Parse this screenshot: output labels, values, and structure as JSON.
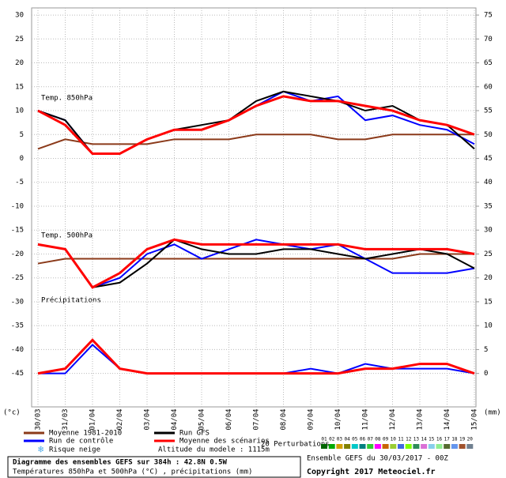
{
  "chart_data": {
    "type": "line",
    "x": [
      "30/03",
      "31/03",
      "01/04",
      "02/04",
      "03/04",
      "04/04",
      "05/04",
      "06/04",
      "07/04",
      "08/04",
      "09/04",
      "10/04",
      "11/04",
      "12/04",
      "13/04",
      "14/04",
      "15/04"
    ],
    "ylim": [
      -52,
      31.5
    ],
    "yticks": [
      30,
      25,
      20,
      15,
      10,
      5,
      0,
      -5,
      -10,
      -15,
      -20,
      -25,
      -30,
      -35,
      -40,
      -45
    ],
    "y2lim": [
      -7,
      76.5
    ],
    "y2ticks": [
      75,
      70,
      65,
      60,
      55,
      50,
      45,
      40,
      35,
      30,
      25,
      20,
      15,
      10,
      5,
      0
    ],
    "grid": true,
    "y_unit": "(°c)",
    "y2_unit": "(mm)",
    "annotations": [
      "Temp. 850hPa",
      "Temp. 500hPa",
      "Précipitations"
    ],
    "series": [
      {
        "name": "Moyenne 1981-2010",
        "color": "#8b3a1a",
        "values": [
          2,
          4,
          3,
          3,
          3,
          4,
          4,
          4,
          5,
          5,
          5,
          4,
          4,
          5,
          5,
          5,
          5
        ]
      },
      {
        "name": "Moyenne 1981-2010",
        "color": "#8b3a1a",
        "values": [
          -22,
          -21,
          -21,
          -21,
          -21,
          -21,
          -21,
          -21,
          -21,
          -21,
          -21,
          -21,
          -21,
          -21,
          -20,
          -20,
          -20
        ]
      },
      {
        "name": "Run de contrôle",
        "color": "#0000ff",
        "values": [
          10,
          8,
          1,
          1,
          4,
          6,
          6,
          8,
          11,
          14,
          12,
          13,
          8,
          9,
          7,
          6,
          3
        ]
      },
      {
        "name": "Run GFS",
        "color": "#000000",
        "values": [
          10,
          8,
          1,
          1,
          4,
          6,
          7,
          8,
          12,
          14,
          13,
          12,
          10,
          11,
          8,
          7,
          2
        ]
      },
      {
        "name": "Moyenne des scénarios",
        "color": "#ff0000",
        "values": [
          10,
          7,
          1,
          1,
          4,
          6,
          6,
          8,
          11,
          13,
          12,
          12,
          11,
          10,
          8,
          7,
          5
        ]
      },
      {
        "name": "Run de contrôle",
        "color": "#0000ff",
        "values": [
          -18,
          -19,
          -27,
          -25,
          -20,
          -18,
          -21,
          -19,
          -17,
          -18,
          -19,
          -18,
          -21,
          -24,
          -24,
          -24,
          -23
        ]
      },
      {
        "name": "Run GFS",
        "color": "#000000",
        "values": [
          -18,
          -19,
          -27,
          -26,
          -22,
          -17,
          -19,
          -20,
          -20,
          -19,
          -19,
          -20,
          -21,
          -20,
          -19,
          -20,
          -23
        ]
      },
      {
        "name": "Moyenne des scénarios",
        "color": "#ff0000",
        "values": [
          -18,
          -19,
          -27,
          -24,
          -19,
          -17,
          -18,
          -18,
          -18,
          -18,
          -18,
          -18,
          -19,
          -19,
          -19,
          -19,
          -20
        ]
      },
      {
        "name": "Run de contrôle",
        "color": "#0000ff",
        "axis": "y2",
        "values": [
          0,
          0,
          6,
          1,
          0,
          0,
          0,
          0,
          0,
          0,
          1,
          0,
          2,
          1,
          1,
          1,
          0
        ]
      },
      {
        "name": "Moyenne des scénarios",
        "color": "#ff0000",
        "axis": "y2",
        "values": [
          0,
          1,
          7,
          1,
          0,
          0,
          0,
          0,
          0,
          0,
          0,
          0,
          1,
          1,
          2,
          2,
          0
        ]
      }
    ],
    "snow_label": "Risque neige",
    "altitude": "Altitude du modele : 1115m",
    "perturbations_label": "20 Perturbations",
    "perturbations": [
      {
        "name": "01",
        "color": "#006400"
      },
      {
        "name": "02",
        "color": "#00aa00"
      },
      {
        "name": "03",
        "color": "#d2a000"
      },
      {
        "name": "04",
        "color": "#808000"
      },
      {
        "name": "05",
        "color": "#00c8c8"
      },
      {
        "name": "06",
        "color": "#008080"
      },
      {
        "name": "07",
        "color": "#32cd32"
      },
      {
        "name": "08",
        "color": "#ff00ff"
      },
      {
        "name": "09",
        "color": "#c86400"
      },
      {
        "name": "10",
        "color": "#9acd32"
      },
      {
        "name": "11",
        "color": "#4169e1"
      },
      {
        "name": "12",
        "color": "#7fff00"
      },
      {
        "name": "13",
        "color": "#2e8b57"
      },
      {
        "name": "14",
        "color": "#da70d6"
      },
      {
        "name": "15",
        "color": "#87ceeb"
      },
      {
        "name": "16",
        "color": "#90ee90"
      },
      {
        "name": "17",
        "color": "#556b2f"
      },
      {
        "name": "18",
        "color": "#6495ed"
      },
      {
        "name": "19",
        "color": "#a0522d"
      },
      {
        "name": "20",
        "color": "#708090"
      }
    ],
    "title": "Diagramme des ensembles GEFS sur 384h : 42.8N 0.5W",
    "subtitle": "Températures 850hPa et 500hPa (°C) , précipitations (mm)",
    "run": "Ensemble GEFS du 30/03/2017 - 00Z",
    "copyright": "Copyright 2017 Meteociel.fr"
  }
}
